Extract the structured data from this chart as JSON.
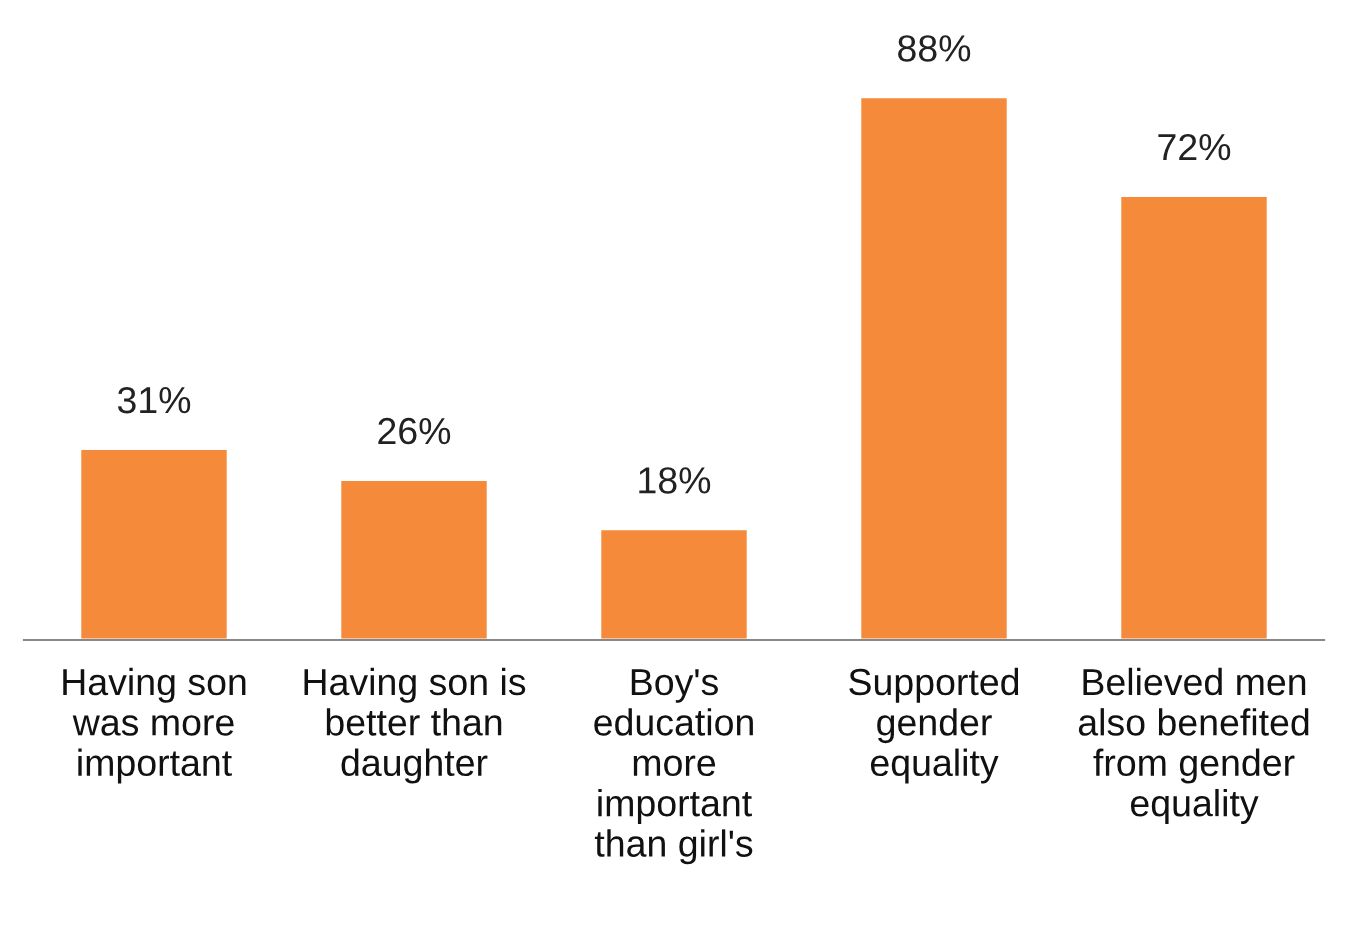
{
  "chart_data": {
    "type": "bar",
    "categories": [
      "Having son\nwas more\nimportant",
      "Having son is\nbetter than\ndaughter",
      "Boy's\neducation\nmore\nimportant\nthan girl's",
      "Supported\ngender\nequality",
      "Believed men\nalso benefited\nfrom gender\nequality"
    ],
    "values": [
      31,
      26,
      18,
      88,
      72
    ],
    "value_labels": [
      "31%",
      "26%",
      "18%",
      "88%",
      "72%"
    ],
    "color": "#f58b3a",
    "grid": false,
    "legend": false
  }
}
